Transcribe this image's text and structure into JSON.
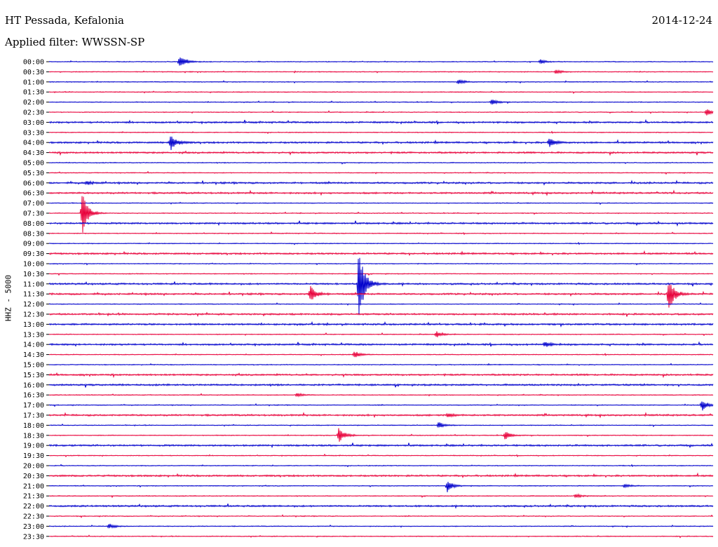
{
  "header": {
    "station": "HT Pessada, Kefalonia",
    "date": "2014-12-24",
    "filter": "Applied filter: WWSSN-SP"
  },
  "chart_data": {
    "type": "line",
    "title": "HT Pessada, Kefalonia",
    "subtitle": "Applied filter: WWSSN-SP",
    "ylabel": "HHZ - 5000",
    "trace_colors": [
      "#0000cc",
      "#e8003a"
    ],
    "rows": [
      "00:00",
      "00:30",
      "01:00",
      "01:30",
      "02:00",
      "02:30",
      "03:00",
      "03:30",
      "04:00",
      "04:30",
      "05:00",
      "05:30",
      "06:00",
      "06:30",
      "07:00",
      "07:30",
      "08:00",
      "08:30",
      "09:00",
      "09:30",
      "10:00",
      "10:30",
      "11:00",
      "11:30",
      "12:00",
      "12:30",
      "13:00",
      "13:30",
      "14:00",
      "14:30",
      "15:00",
      "15:30",
      "16:00",
      "16:30",
      "17:00",
      "17:30",
      "18:00",
      "18:30",
      "19:00",
      "19:30",
      "20:00",
      "20:30",
      "21:00",
      "21:30",
      "22:00",
      "22:30",
      "23:00",
      "23:30"
    ],
    "noise_level": [
      1,
      1,
      1,
      1,
      1,
      1,
      2,
      1,
      2,
      2,
      1,
      1,
      2,
      2,
      1,
      1,
      2,
      1,
      1,
      2,
      1,
      1,
      2,
      2,
      1,
      2,
      2,
      1,
      2,
      1,
      1,
      2,
      2,
      1,
      1,
      2,
      1,
      1,
      2,
      1,
      1,
      2,
      1,
      1,
      2,
      1,
      1,
      1
    ],
    "row_minutes": 30,
    "events": [
      {
        "row": 0,
        "minute": 5.9,
        "amplitude": 9
      },
      {
        "row": 0,
        "minute": 22.2,
        "amplitude": 3
      },
      {
        "row": 1,
        "minute": 22.9,
        "amplitude": 3
      },
      {
        "row": 2,
        "minute": 18.5,
        "amplitude": 3
      },
      {
        "row": 4,
        "minute": 20.0,
        "amplitude": 4
      },
      {
        "row": 5,
        "minute": 29.7,
        "amplitude": 6
      },
      {
        "row": 8,
        "minute": 5.5,
        "amplitude": 12
      },
      {
        "row": 8,
        "minute": 22.6,
        "amplitude": 7
      },
      {
        "row": 12,
        "minute": 1.7,
        "amplitude": 3
      },
      {
        "row": 15,
        "minute": 1.5,
        "amplitude": 32
      },
      {
        "row": 22,
        "minute": 14.0,
        "amplitude": 55
      },
      {
        "row": 23,
        "minute": 11.8,
        "amplitude": 12
      },
      {
        "row": 23,
        "minute": 28.0,
        "amplitude": 24
      },
      {
        "row": 27,
        "minute": 17.5,
        "amplitude": 5
      },
      {
        "row": 28,
        "minute": 22.4,
        "amplitude": 4
      },
      {
        "row": 29,
        "minute": 13.8,
        "amplitude": 5
      },
      {
        "row": 33,
        "minute": 11.2,
        "amplitude": 3
      },
      {
        "row": 34,
        "minute": 29.5,
        "amplitude": 8
      },
      {
        "row": 35,
        "minute": 18.0,
        "amplitude": 3
      },
      {
        "row": 36,
        "minute": 17.6,
        "amplitude": 5
      },
      {
        "row": 37,
        "minute": 13.1,
        "amplitude": 11
      },
      {
        "row": 37,
        "minute": 20.6,
        "amplitude": 6
      },
      {
        "row": 42,
        "minute": 18.0,
        "amplitude": 9
      },
      {
        "row": 42,
        "minute": 26.0,
        "amplitude": 3
      },
      {
        "row": 43,
        "minute": 23.8,
        "amplitude": 3
      },
      {
        "row": 46,
        "minute": 2.7,
        "amplitude": 4
      }
    ]
  }
}
